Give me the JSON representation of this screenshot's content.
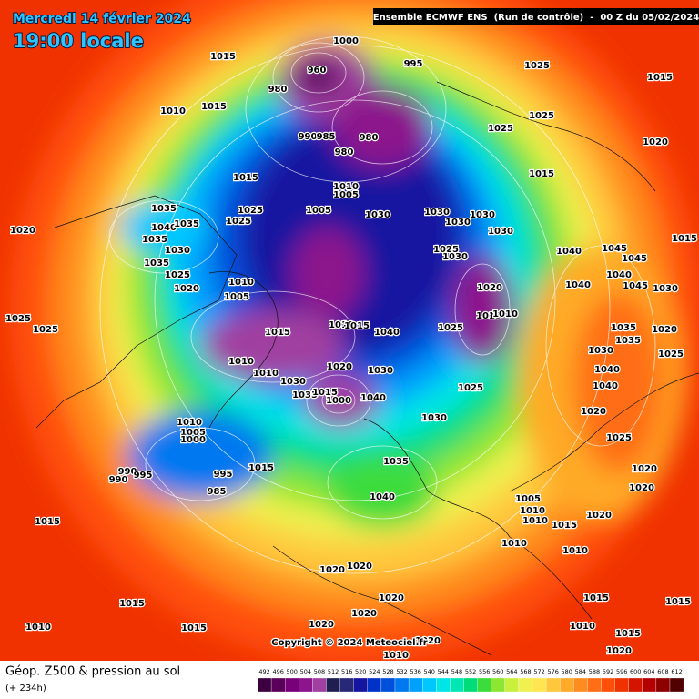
{
  "header": {
    "date": "Mercredi 14 février 2024",
    "time": "19:00 locale",
    "run": "Ensemble ECMWF ENS  (Run de contrôle)  -  00 Z du 05/02/2024"
  },
  "copyright": "Copyright © 2024 Meteociel.fr",
  "footer": {
    "title": "Géop. Z500 & pression au sol",
    "lead": "(+ 234h)"
  },
  "scale": {
    "values": [
      492,
      496,
      500,
      504,
      508,
      512,
      516,
      520,
      524,
      528,
      532,
      536,
      540,
      544,
      548,
      552,
      556,
      560,
      564,
      568,
      572,
      576,
      580,
      584,
      588,
      592,
      596,
      600,
      604,
      608,
      612
    ],
    "colors": [
      "#3c0040",
      "#5a005a",
      "#780078",
      "#8c148c",
      "#a040a0",
      "#1e1e50",
      "#282878",
      "#1414a0",
      "#0032c8",
      "#0050dc",
      "#0078f0",
      "#00a0ff",
      "#00c8ff",
      "#00e6e6",
      "#00e6b4",
      "#00dc78",
      "#3cdc3c",
      "#8ce632",
      "#c8f03c",
      "#f0f050",
      "#ffe650",
      "#ffc83c",
      "#ffaa28",
      "#ff8c1e",
      "#ff6e14",
      "#ff500a",
      "#f03200",
      "#d21400",
      "#b40000",
      "#8c0000",
      "#500000"
    ]
  },
  "isobar_labels": [
    "1015",
    "1000",
    "995",
    "1025",
    "1015",
    "960",
    "980",
    "1010",
    "1015",
    "1025",
    "990",
    "985",
    "980",
    "980",
    "1025",
    "1020",
    "1015",
    "1010",
    "1005",
    "1015",
    "1025",
    "1005",
    "1030",
    "1030",
    "1030",
    "1030",
    "1030",
    "1035",
    "1040",
    "1035",
    "1025",
    "1020",
    "1015",
    "1040",
    "1045",
    "1045",
    "1025",
    "1030",
    "1035",
    "1030",
    "1035",
    "1025",
    "1020",
    "1010",
    "1005",
    "1045",
    "1040",
    "1040",
    "1030",
    "1020",
    "1015",
    "1010",
    "1015",
    "1010",
    "1015",
    "1040",
    "1025",
    "1035",
    "1020",
    "1025",
    "1025",
    "1035",
    "1030",
    "1025",
    "1010",
    "1020",
    "1030",
    "1010",
    "1030",
    "1035",
    "1015",
    "1000",
    "1040",
    "1025",
    "1040",
    "1040",
    "1020",
    "1030",
    "1010",
    "1005",
    "1000",
    "1025",
    "1035",
    "1015",
    "995",
    "990",
    "995",
    "990",
    "985",
    "1020",
    "1040",
    "1005",
    "1010",
    "1010",
    "1020",
    "1015",
    "1020",
    "1015",
    "1010",
    "1010",
    "1020",
    "1020",
    "1020",
    "1015",
    "1015",
    "1015",
    "1010",
    "1015",
    "1020",
    "1020",
    "1010",
    "1015",
    "1020",
    "1010",
    "1020"
  ]
}
